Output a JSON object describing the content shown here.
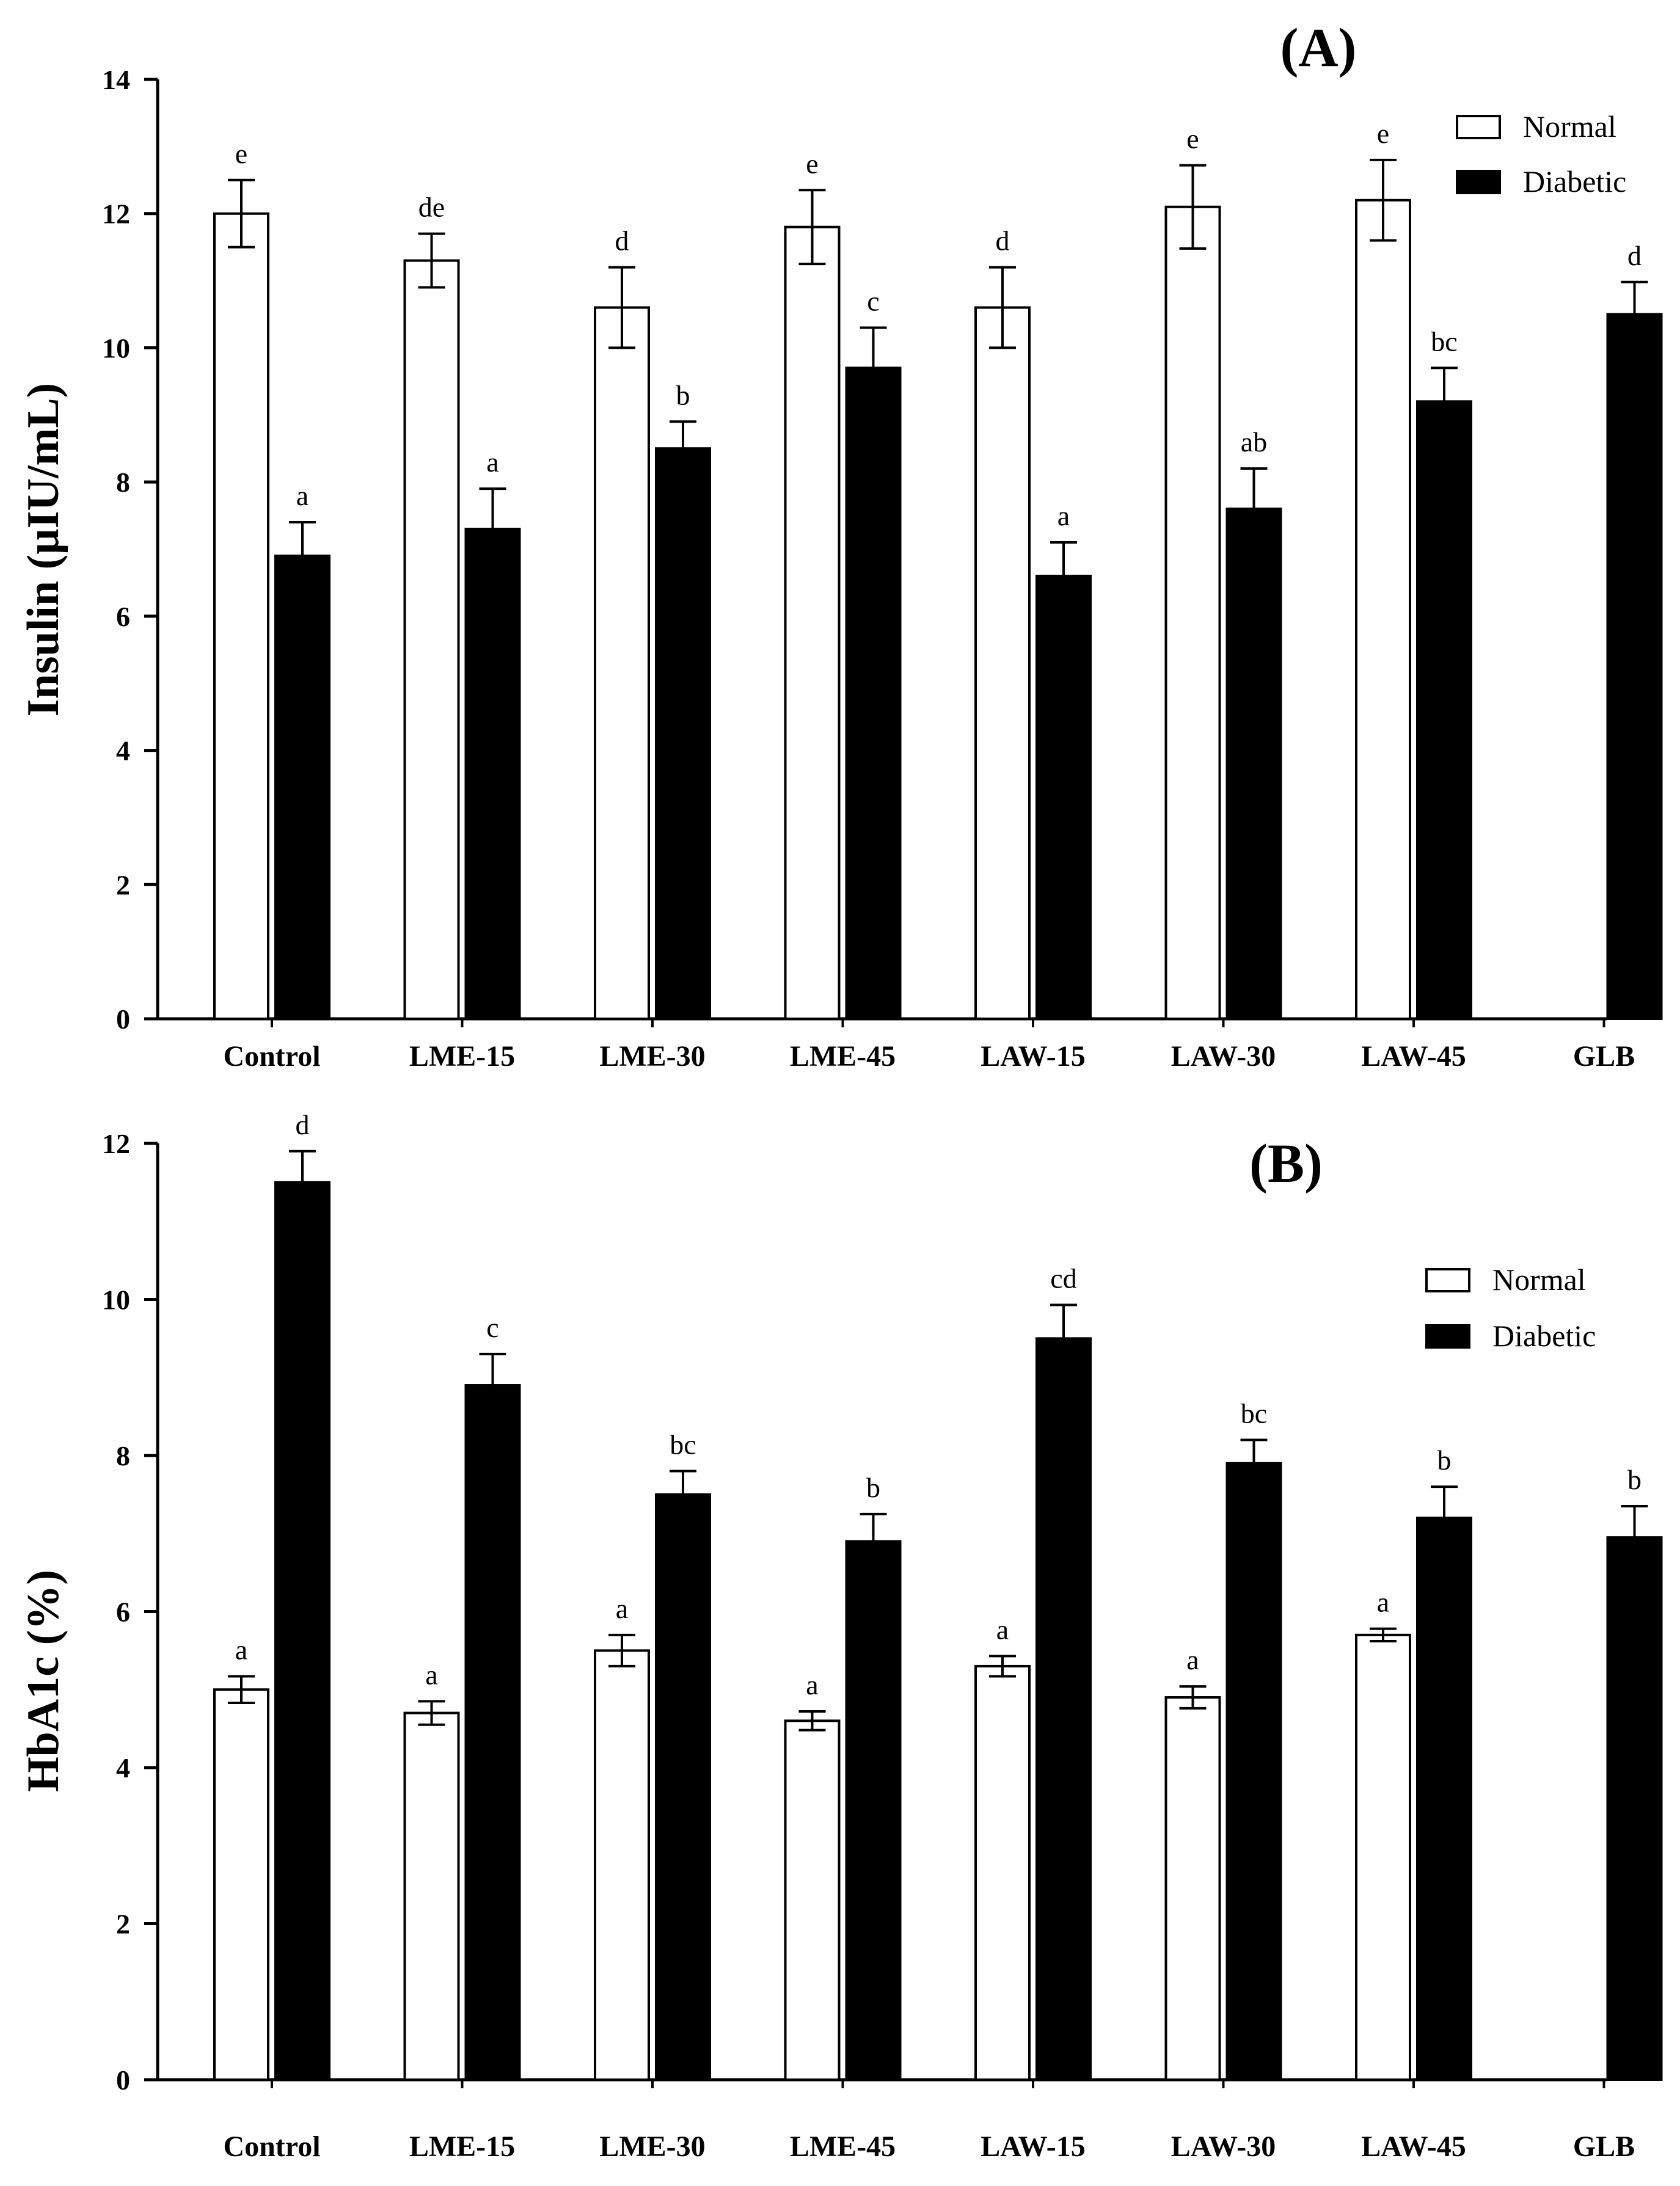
{
  "chart_data": [
    {
      "panel": "(A)",
      "type": "bar",
      "ylabel": "Insulin (µIU/mL)",
      "ylim": [
        0,
        14
      ],
      "yticks": [
        0,
        2,
        4,
        6,
        8,
        10,
        12,
        14
      ],
      "categories": [
        "Control",
        "LME-15",
        "LME-30",
        "LME-45",
        "LAW-15",
        "LAW-30",
        "LAW-45",
        "GLB"
      ],
      "legend": [
        "Normal",
        "Diabetic"
      ],
      "series": [
        {
          "name": "Normal",
          "color": "#ffffff",
          "values": [
            12.0,
            11.3,
            10.6,
            11.8,
            10.6,
            12.1,
            12.2,
            null
          ],
          "errors": [
            0.5,
            0.4,
            0.6,
            0.55,
            0.6,
            0.62,
            0.6,
            null
          ],
          "labels": [
            "e",
            "de",
            "d",
            "e",
            "d",
            "e",
            "e",
            null
          ]
        },
        {
          "name": "Diabetic",
          "color": "#000000",
          "values": [
            6.9,
            7.3,
            8.5,
            9.7,
            6.6,
            7.6,
            9.2,
            10.5
          ],
          "errors": [
            0.5,
            0.6,
            0.4,
            0.6,
            0.5,
            0.6,
            0.5,
            0.48
          ],
          "labels": [
            "a",
            "a",
            "b",
            "c",
            "a",
            "ab",
            "bc",
            "d"
          ]
        }
      ]
    },
    {
      "panel": "(B)",
      "type": "bar",
      "ylabel": "HbA1c (%)",
      "ylim": [
        0,
        12
      ],
      "yticks": [
        0,
        2,
        4,
        6,
        8,
        10,
        12
      ],
      "categories": [
        "Control",
        "LME-15",
        "LME-30",
        "LME-45",
        "LAW-15",
        "LAW-30",
        "LAW-45",
        "GLB"
      ],
      "legend": [
        "Normal",
        "Diabetic"
      ],
      "series": [
        {
          "name": "Normal",
          "color": "#ffffff",
          "values": [
            5.0,
            4.7,
            5.5,
            4.6,
            5.3,
            4.9,
            5.7,
            null
          ],
          "errors": [
            0.17,
            0.15,
            0.2,
            0.12,
            0.13,
            0.14,
            0.08,
            null
          ],
          "labels": [
            "a",
            "a",
            "a",
            "a",
            "a",
            "a",
            "a",
            null
          ]
        },
        {
          "name": "Diabetic",
          "color": "#000000",
          "values": [
            11.5,
            8.9,
            7.5,
            6.9,
            9.5,
            7.9,
            7.2,
            6.95
          ],
          "errors": [
            0.4,
            0.4,
            0.3,
            0.35,
            0.43,
            0.3,
            0.4,
            0.4
          ],
          "labels": [
            "d",
            "c",
            "bc",
            "b",
            "cd",
            "bc",
            "b",
            "b"
          ]
        }
      ]
    }
  ]
}
